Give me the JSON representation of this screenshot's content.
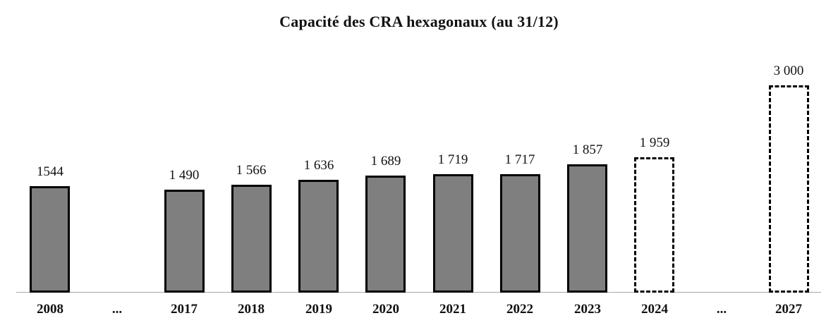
{
  "chart_data": {
    "type": "bar",
    "title": "Capacité des CRA hexagonaux (au 31/12)",
    "xlabel": "",
    "ylabel": "",
    "ylim": [
      0,
      3100
    ],
    "grid": false,
    "legend": null,
    "bar_fill_color": "#7f7f7f",
    "bar_border_color": "#000000",
    "projected_bar_style": "dashed-outline-white-fill",
    "axis_line_color": "#a6a6a6",
    "categories": [
      "2008",
      "...",
      "2017",
      "2018",
      "2019",
      "2020",
      "2021",
      "2022",
      "2023",
      "2024",
      "...",
      "2027"
    ],
    "points": [
      {
        "category": "2008",
        "value": 1544,
        "label": "1544",
        "style": "solid"
      },
      {
        "category": "...",
        "value": null,
        "label": "",
        "style": "none"
      },
      {
        "category": "2017",
        "value": 1490,
        "label": "1 490",
        "style": "solid"
      },
      {
        "category": "2018",
        "value": 1566,
        "label": "1 566",
        "style": "solid"
      },
      {
        "category": "2019",
        "value": 1636,
        "label": "1 636",
        "style": "solid"
      },
      {
        "category": "2020",
        "value": 1689,
        "label": "1 689",
        "style": "solid"
      },
      {
        "category": "2021",
        "value": 1719,
        "label": "1 719",
        "style": "solid"
      },
      {
        "category": "2022",
        "value": 1717,
        "label": "1 717",
        "style": "solid"
      },
      {
        "category": "2023",
        "value": 1857,
        "label": "1 857",
        "style": "solid"
      },
      {
        "category": "2024",
        "value": 1959,
        "label": "1 959",
        "style": "dashed"
      },
      {
        "category": "...",
        "value": null,
        "label": "",
        "style": "none"
      },
      {
        "category": "2027",
        "value": 3000,
        "label": "3 000",
        "style": "dashed"
      }
    ]
  }
}
